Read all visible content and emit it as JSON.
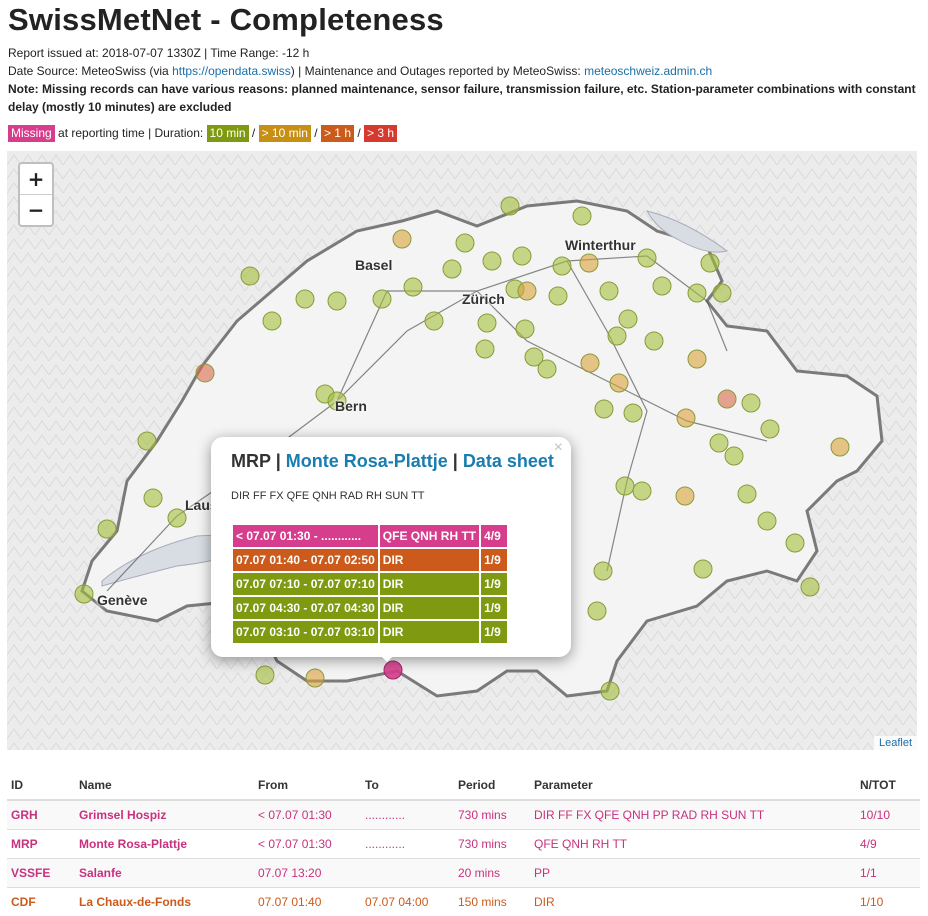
{
  "title": "SwissMetNet - Completeness",
  "report_line": "Report issued at: 2018-07-07 1330Z | Time Range: -12 h",
  "source": {
    "prefix": "Date Source: MeteoSwiss (via ",
    "link1": "https://opendata.swiss",
    "middle": ") | Maintenance and Outages reported by MeteoSwiss: ",
    "link2": "meteoschweiz.admin.ch"
  },
  "note": "Note: Missing records can have various reasons: planned maintenance, sensor failure, transmission failure, etc. Station-parameter combinations with constant delay (mostly 10 minutes) are excluded",
  "legend": {
    "missing": "Missing",
    "at_text": " at reporting time | Duration: ",
    "d1": "10 min",
    "d2": "> 10 min",
    "d3": "> 1 h",
    "d4": "> 3 h",
    "sep": " / "
  },
  "colors": {
    "missing": "#d63d8c",
    "green": "#7f9a10",
    "amber": "#c79014",
    "orange": "#cc5a1a",
    "red": "#d63a2e",
    "station_green": "#a3bf3a",
    "station_amber": "#d9a13a",
    "station_red": "#d96a4a"
  },
  "map": {
    "zoom_in": "+",
    "zoom_out": "−",
    "attribution": "Leaflet",
    "cities": [
      "Basel",
      "Winterthur",
      "Zürich",
      "Bern",
      "Laus",
      "Genève"
    ]
  },
  "popup": {
    "id": "MRP",
    "sep1": " | ",
    "name": "Monte Rosa-Plattje",
    "sep2": " | ",
    "datasheet": "Data sheet",
    "close": "×",
    "params": "DIR FF FX QFE QNH RAD RH SUN TT",
    "rows": [
      {
        "range": "< 07.07 01:30 - ............",
        "param": "QFE QNH RH TT",
        "count": "4/9"
      },
      {
        "range": "07.07 01:40 - 07.07 02:50",
        "param": "DIR",
        "count": "1/9"
      },
      {
        "range": "07.07 07:10 - 07.07 07:10",
        "param": "DIR",
        "count": "1/9"
      },
      {
        "range": "07.07 04:30 - 07.07 04:30",
        "param": "DIR",
        "count": "1/9"
      },
      {
        "range": "07.07 03:10 - 07.07 03:10",
        "param": "DIR",
        "count": "1/9"
      }
    ]
  },
  "table": {
    "headers": [
      "ID",
      "Name",
      "From",
      "To",
      "Period",
      "Parameter",
      "N/TOT"
    ],
    "rows": [
      {
        "id": "GRH",
        "name": "Grimsel Hospiz",
        "from": "< 07.07 01:30",
        "to": "............",
        "period": "730 mins",
        "parameter": "DIR FF FX QFE QNH PP RAD RH SUN TT",
        "ntot": "10/10"
      },
      {
        "id": "MRP",
        "name": "Monte Rosa-Plattje",
        "from": "< 07.07 01:30",
        "to": "............",
        "period": "730 mins",
        "parameter": "QFE QNH RH TT",
        "ntot": "4/9"
      },
      {
        "id": "VSSFE",
        "name": "Salanfe",
        "from": "07.07 13:20",
        "to": "",
        "period": "20 mins",
        "parameter": "PP",
        "ntot": "1/1"
      },
      {
        "id": "CDF",
        "name": "La Chaux-de-Fonds",
        "from": "07.07 01:40",
        "to": "07.07 04:00",
        "period": "150 mins",
        "parameter": "DIR",
        "ntot": "1/10"
      }
    ]
  }
}
